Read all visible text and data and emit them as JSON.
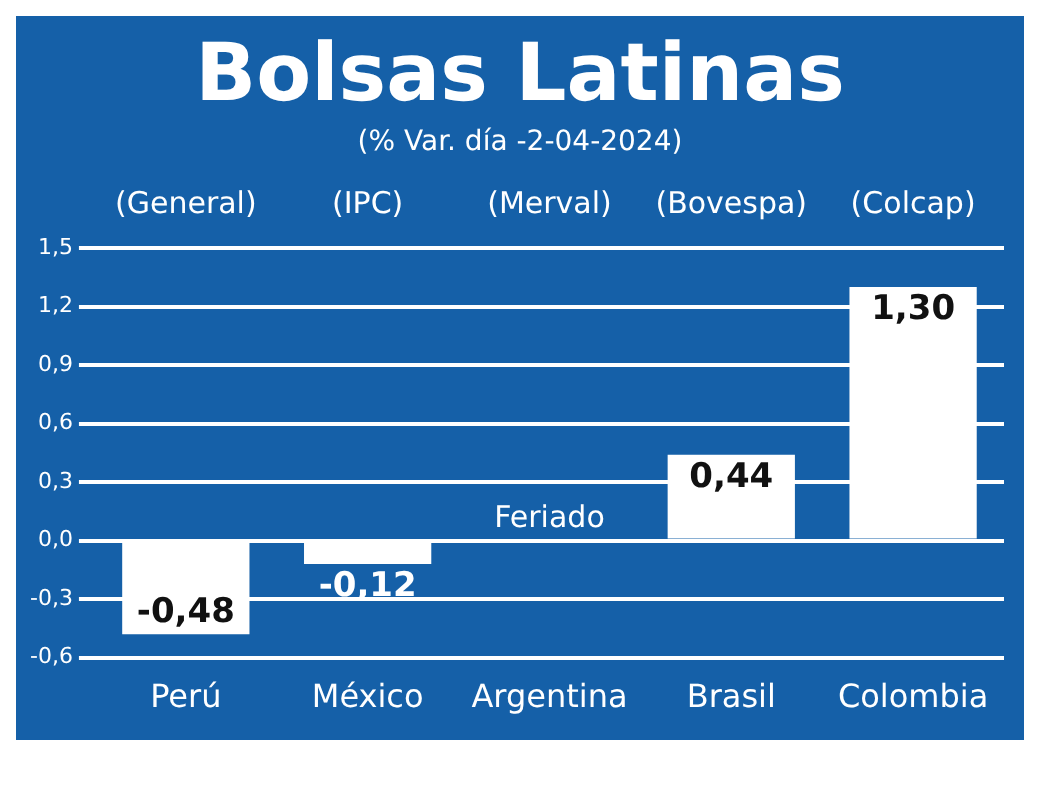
{
  "chart_data": {
    "type": "bar",
    "title": "Bolsas Latinas",
    "subtitle": "(% Var. día -2-04-2024)",
    "categories": [
      "Perú",
      "México",
      "Argentina",
      "Brasil",
      "Colombia"
    ],
    "values": [
      -0.48,
      -0.12,
      null,
      0.44,
      1.3
    ],
    "value_labels": [
      "-0,48",
      "-0,12",
      "Feriado",
      "0,44",
      "1,30"
    ],
    "color": "#ffffff",
    "annotations": [
      "(General)",
      "(IPC)",
      "(Merval)",
      "(Bovespa)",
      "(Colcap)"
    ],
    "ylim": [
      -0.6,
      1.5
    ],
    "yticks": [
      {
        "value": -0.6,
        "label": "-0,6"
      },
      {
        "value": -0.3,
        "label": "-0,3"
      },
      {
        "value": 0,
        "label": "0,0"
      },
      {
        "value": 0.3,
        "label": "0,3"
      },
      {
        "value": 0.6,
        "label": "0,6"
      },
      {
        "value": 0.9,
        "label": "0,9"
      },
      {
        "value": 1.2,
        "label": "1,2"
      },
      {
        "value": 1.5,
        "label": "1,5"
      }
    ],
    "grid": "y",
    "legend": false
  }
}
